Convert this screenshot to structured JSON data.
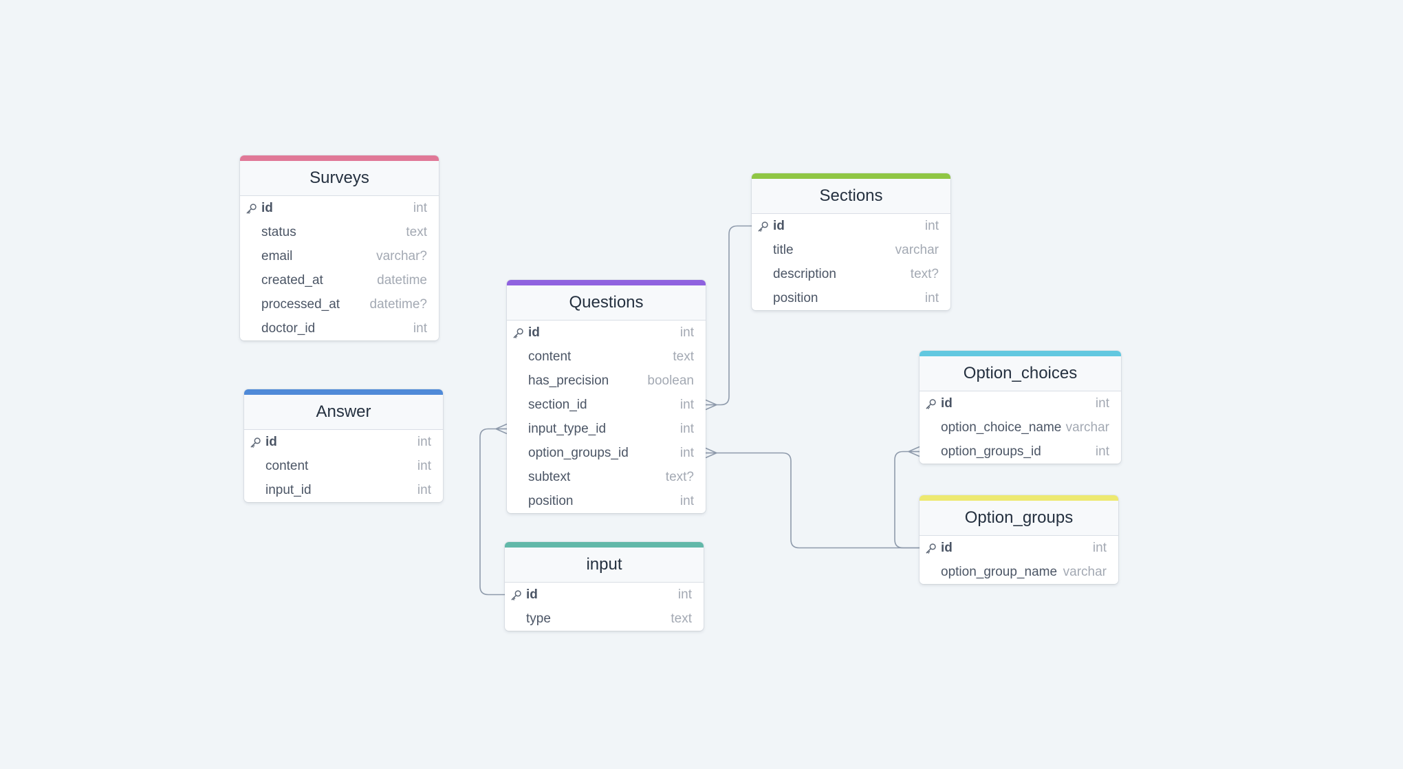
{
  "colors": {
    "background": "#f1f5f8",
    "connector": "#8e9aab",
    "surveys": "#e07897",
    "answer": "#4f8ad8",
    "questions": "#8f62df",
    "input": "#62b8a9",
    "sections": "#8fc644",
    "option_choices": "#62c8e0",
    "option_groups": "#ede971"
  },
  "tables": {
    "surveys": {
      "title": "Surveys",
      "columns": [
        {
          "name": "id",
          "type": "int",
          "pk": true,
          "icon": "key-icon"
        },
        {
          "name": "status",
          "type": "text"
        },
        {
          "name": "email",
          "type": "varchar?"
        },
        {
          "name": "created_at",
          "type": "datetime"
        },
        {
          "name": "processed_at",
          "type": "datetime?"
        },
        {
          "name": "doctor_id",
          "type": "int"
        }
      ]
    },
    "answer": {
      "title": "Answer",
      "columns": [
        {
          "name": "id",
          "type": "int",
          "pk": true,
          "icon": "key-icon"
        },
        {
          "name": "content",
          "type": "int"
        },
        {
          "name": "input_id",
          "type": "int"
        }
      ]
    },
    "questions": {
      "title": "Questions",
      "columns": [
        {
          "name": "id",
          "type": "int",
          "pk": true,
          "icon": "key-icon"
        },
        {
          "name": "content",
          "type": "text"
        },
        {
          "name": "has_precision",
          "type": "boolean"
        },
        {
          "name": "section_id",
          "type": "int"
        },
        {
          "name": "input_type_id",
          "type": "int"
        },
        {
          "name": "option_groups_id",
          "type": "int"
        },
        {
          "name": "subtext",
          "type": "text?"
        },
        {
          "name": "position",
          "type": "int"
        }
      ]
    },
    "input": {
      "title": "input",
      "columns": [
        {
          "name": "id",
          "type": "int",
          "pk": true,
          "icon": "key-icon"
        },
        {
          "name": "type",
          "type": "text"
        }
      ]
    },
    "sections": {
      "title": "Sections",
      "columns": [
        {
          "name": "id",
          "type": "int",
          "pk": true,
          "icon": "key-icon"
        },
        {
          "name": "title",
          "type": "varchar"
        },
        {
          "name": "description",
          "type": "text?"
        },
        {
          "name": "position",
          "type": "int"
        }
      ]
    },
    "option_choices": {
      "title": "Option_choices",
      "columns": [
        {
          "name": "id",
          "type": "int",
          "pk": true,
          "icon": "key-icon"
        },
        {
          "name": "option_choice_name",
          "type": "varchar"
        },
        {
          "name": "option_groups_id",
          "type": "int"
        }
      ]
    },
    "option_groups": {
      "title": "Option_groups",
      "columns": [
        {
          "name": "id",
          "type": "int",
          "pk": true,
          "icon": "key-icon"
        },
        {
          "name": "option_group_name",
          "type": "varchar"
        }
      ]
    }
  },
  "relationships": [
    {
      "from": "questions.section_id",
      "to": "sections.id",
      "cardinality": "many-to-one"
    },
    {
      "from": "questions.input_type_id",
      "to": "input.id",
      "cardinality": "many-to-one"
    },
    {
      "from": "questions.option_groups_id",
      "to": "option_groups.id",
      "cardinality": "many-to-one"
    },
    {
      "from": "option_choices.option_groups_id",
      "to": "option_groups.id",
      "cardinality": "many-to-one"
    }
  ]
}
